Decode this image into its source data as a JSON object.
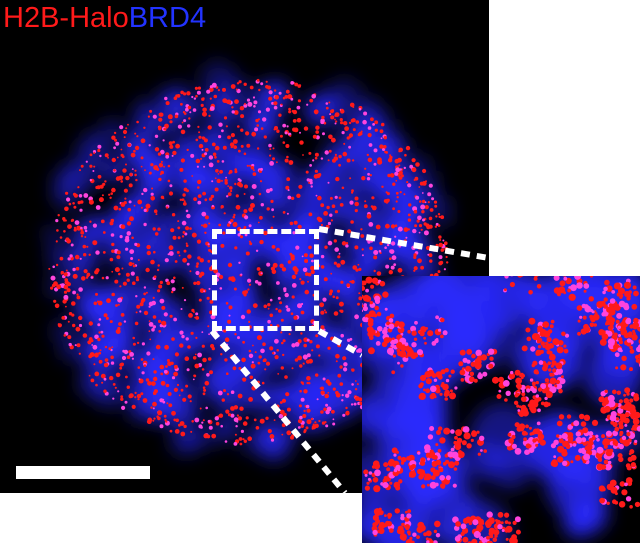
{
  "figure": {
    "labels": [
      {
        "text": "H2B-Halo",
        "color": "#ff1a1a"
      },
      {
        "text": "BRD4",
        "color": "#2233ff"
      }
    ]
  },
  "colors": {
    "background": "#000000",
    "h2b_channel": "#ff1a1a",
    "brd4_channel": "#2a2aff",
    "overlap": "#ff44dd",
    "annotation": "#ffffff"
  },
  "elements": {
    "scale_bar": "scale-bar",
    "roi": "dashed-roi-box",
    "inset": "magnified-inset"
  }
}
